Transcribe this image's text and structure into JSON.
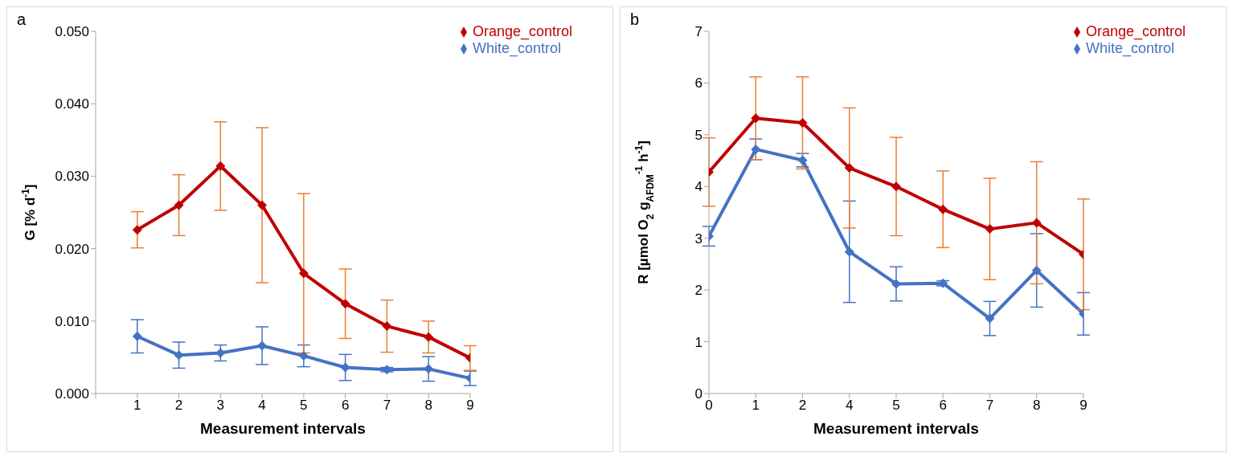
{
  "chart_data": [
    {
      "type": "line",
      "title": "a",
      "xlabel": "Measurement intervals",
      "ylabel": "G [% d$^{-1}$]",
      "x": [
        1,
        2,
        3,
        4,
        5,
        6,
        7,
        8,
        9
      ],
      "xlim": [
        0,
        9
      ],
      "xticks": [
        {
          "value": 0,
          "label": null
        },
        1,
        2,
        3,
        4,
        5,
        6,
        7,
        8,
        9
      ],
      "ylim": [
        0,
        0.05
      ],
      "yticks": [
        {
          "value": 0,
          "label": "0.000"
        },
        {
          "value": 0.01,
          "label": "0.010"
        },
        {
          "value": 0.02,
          "label": "0.020"
        },
        {
          "value": 0.03,
          "label": "0.030"
        },
        {
          "value": 0.04,
          "label": "0.040"
        },
        {
          "value": 0.05,
          "label": "0.050"
        }
      ],
      "series": [
        {
          "name": "White_control",
          "color": "#4472c4",
          "values": [
            0.0079,
            0.0053,
            0.0056,
            0.0066,
            0.0052,
            0.0036,
            0.0033,
            0.0034,
            0.0021
          ],
          "errors": [
            0.0023,
            0.0018,
            0.0011,
            0.0026,
            0.0015,
            0.0018,
            0.0003,
            0.0017,
            0.001
          ]
        },
        {
          "name": "Orange_control",
          "color": "#c00000",
          "values": [
            0.0226,
            0.026,
            0.0314,
            0.026,
            0.0166,
            0.0124,
            0.0093,
            0.0078,
            0.0049
          ],
          "errors": [
            0.0025,
            0.0042,
            0.0061,
            0.0107,
            0.011,
            0.0048,
            0.0036,
            0.0022,
            0.0017
          ]
        }
      ],
      "legend": "top right",
      "grid": false,
      "marker": "diamond",
      "line_style": "solid"
    },
    {
      "type": "line",
      "title": "b",
      "xlabel": "Measurement intervals",
      "ylabel": "R [µmol O$_{2}$ g$_{AFDM}$$^{-1}$ h$^{-1}$]",
      "categories": [
        "0",
        "1",
        "2",
        "4",
        "5",
        "6",
        "7",
        "8",
        "9"
      ],
      "ylim": [
        0,
        7
      ],
      "yticks": [
        0,
        1,
        2,
        3,
        4,
        5,
        6,
        7
      ],
      "series": [
        {
          "name": "White_control",
          "color": "#4472c4",
          "values": [
            3.04,
            4.72,
            4.51,
            2.74,
            2.12,
            2.13,
            1.45,
            2.38,
            1.54
          ],
          "errors": [
            0.19,
            0.2,
            0.13,
            0.98,
            0.33,
            0.05,
            0.33,
            0.71,
            0.41
          ]
        },
        {
          "name": "Orange_control",
          "color": "#c00000",
          "values": [
            4.28,
            5.32,
            5.23,
            4.36,
            4.0,
            3.56,
            3.18,
            3.3,
            2.69
          ],
          "errors": [
            0.66,
            0.8,
            0.89,
            1.16,
            0.95,
            0.74,
            0.98,
            1.18,
            1.07
          ]
        }
      ],
      "legend": "top right",
      "grid": false,
      "marker": "diamond",
      "line_style": "solid"
    }
  ]
}
